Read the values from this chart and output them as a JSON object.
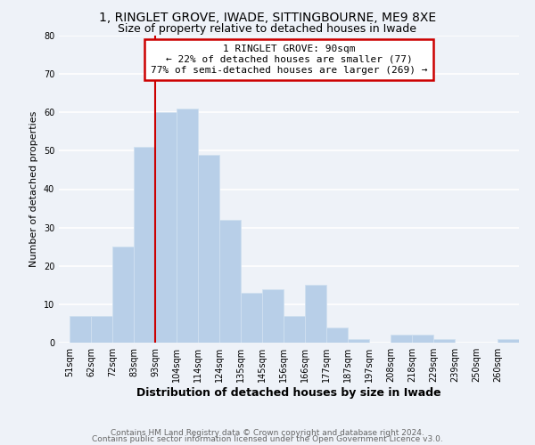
{
  "title1": "1, RINGLET GROVE, IWADE, SITTINGBOURNE, ME9 8XE",
  "title2": "Size of property relative to detached houses in Iwade",
  "xlabel": "Distribution of detached houses by size in Iwade",
  "ylabel": "Number of detached properties",
  "bin_labels": [
    "51sqm",
    "62sqm",
    "72sqm",
    "83sqm",
    "93sqm",
    "104sqm",
    "114sqm",
    "124sqm",
    "135sqm",
    "145sqm",
    "156sqm",
    "166sqm",
    "177sqm",
    "187sqm",
    "197sqm",
    "208sqm",
    "218sqm",
    "229sqm",
    "239sqm",
    "250sqm",
    "260sqm"
  ],
  "bar_values": [
    7,
    7,
    25,
    51,
    60,
    61,
    49,
    32,
    13,
    14,
    7,
    15,
    4,
    1,
    0,
    2,
    2,
    1,
    0,
    0,
    1
  ],
  "bar_color": "#b8cfe8",
  "bar_edge_color": "#d0e0f0",
  "vline_index": 4,
  "vline_color": "#cc0000",
  "annotation_line1": "1 RINGLET GROVE: 90sqm",
  "annotation_line2": "← 22% of detached houses are smaller (77)",
  "annotation_line3": "77% of semi-detached houses are larger (269) →",
  "annotation_box_edge_color": "#cc0000",
  "annotation_box_fill": "#ffffff",
  "ylim": [
    0,
    80
  ],
  "yticks": [
    0,
    10,
    20,
    30,
    40,
    50,
    60,
    70,
    80
  ],
  "footer1": "Contains HM Land Registry data © Crown copyright and database right 2024.",
  "footer2": "Contains public sector information licensed under the Open Government Licence v3.0.",
  "background_color": "#eef2f8",
  "grid_color": "#ffffff",
  "title1_fontsize": 10,
  "title2_fontsize": 9,
  "xlabel_fontsize": 9,
  "ylabel_fontsize": 8,
  "tick_fontsize": 7,
  "annot_fontsize": 8,
  "footer_fontsize": 6.5
}
